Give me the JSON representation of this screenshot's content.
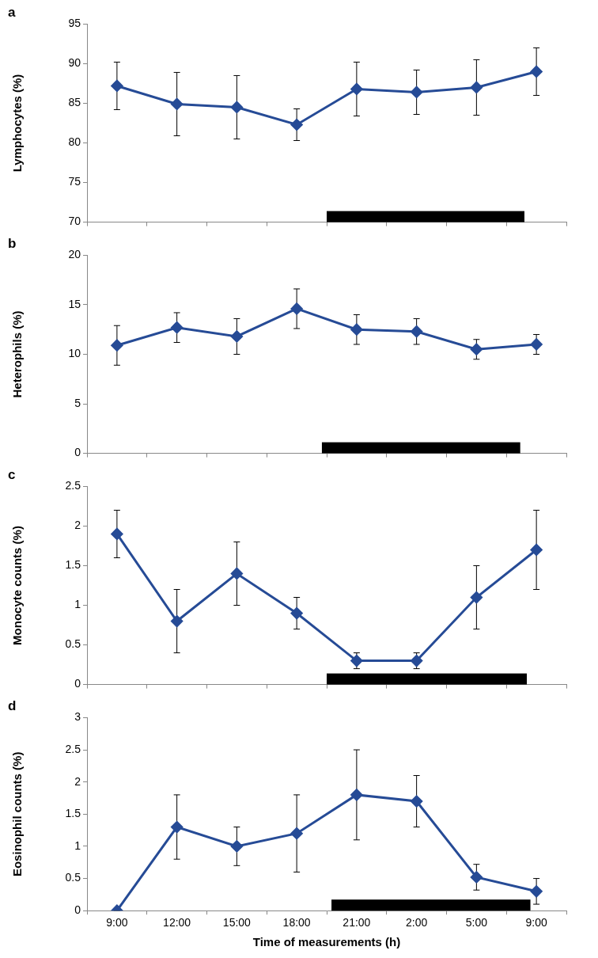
{
  "chart_data": [
    {
      "type": "line",
      "title": "a",
      "y_label": "Lymphocytes (%)",
      "categories": [
        "9:00",
        "12:00",
        "15:00",
        "18:00",
        "21:00",
        "2:00",
        "5:00",
        "9:00"
      ],
      "values": [
        87.2,
        84.9,
        84.5,
        82.3,
        86.8,
        86.4,
        87.0,
        89.0
      ],
      "error": [
        3.0,
        4.0,
        4.0,
        2.0,
        3.4,
        2.8,
        3.5,
        3.0
      ],
      "color": "#264b96",
      "marker": "diamond",
      "ylim": [
        70,
        95
      ],
      "yticks": [
        70,
        75,
        80,
        85,
        90,
        95
      ],
      "grid": false,
      "tick_labels": "y",
      "dark_period": [
        3.5,
        6.8
      ]
    },
    {
      "type": "line",
      "title": "b",
      "y_label": "Heterophils (%)",
      "categories": [
        "9:00",
        "12:00",
        "15:00",
        "18:00",
        "21:00",
        "2:00",
        "5:00",
        "9:00"
      ],
      "values": [
        10.9,
        12.7,
        11.8,
        14.6,
        12.5,
        12.3,
        10.5,
        11.0
      ],
      "error": [
        2.0,
        1.5,
        1.8,
        2.0,
        1.5,
        1.3,
        1.0,
        1.0
      ],
      "color": "#264b96",
      "marker": "diamond",
      "ylim": [
        0,
        20
      ],
      "yticks": [
        0,
        5,
        10,
        15,
        20
      ],
      "grid": false,
      "tick_labels": "y",
      "dark_period": [
        3.42,
        6.73
      ]
    },
    {
      "type": "line",
      "title": "c",
      "y_label": "Monocyte counts (%)",
      "categories": [
        "9:00",
        "12:00",
        "15:00",
        "18:00",
        "21:00",
        "2:00",
        "5:00",
        "9:00"
      ],
      "values": [
        1.9,
        0.8,
        1.4,
        0.9,
        0.3,
        0.3,
        1.1,
        1.7
      ],
      "error": [
        0.3,
        0.4,
        0.4,
        0.2,
        0.1,
        0.1,
        0.4,
        0.5
      ],
      "color": "#264b96",
      "marker": "diamond",
      "ylim": [
        0,
        2.5
      ],
      "yticks": [
        0,
        0.5,
        1,
        1.5,
        2,
        2.5
      ],
      "grid": false,
      "tick_labels": "y",
      "dark_period": [
        3.5,
        6.84
      ]
    },
    {
      "type": "line",
      "title": "d",
      "y_label": "Eosinophil counts (%)",
      "x_label": "Time of measurements (h)",
      "categories": [
        "9:00",
        "12:00",
        "15:00",
        "18:00",
        "21:00",
        "2:00",
        "5:00",
        "9:00"
      ],
      "values": [
        0,
        1.3,
        1.0,
        1.2,
        1.8,
        1.7,
        0.52,
        0.3
      ],
      "error": [
        0,
        0.5,
        0.3,
        0.6,
        0.7,
        0.4,
        0.2,
        0.2
      ],
      "color": "#264b96",
      "marker": "diamond",
      "ylim": [
        0,
        3
      ],
      "yticks": [
        0,
        0.5,
        1,
        1.5,
        2,
        2.5,
        3
      ],
      "grid": false,
      "dark_period": [
        3.58,
        6.9
      ]
    }
  ]
}
